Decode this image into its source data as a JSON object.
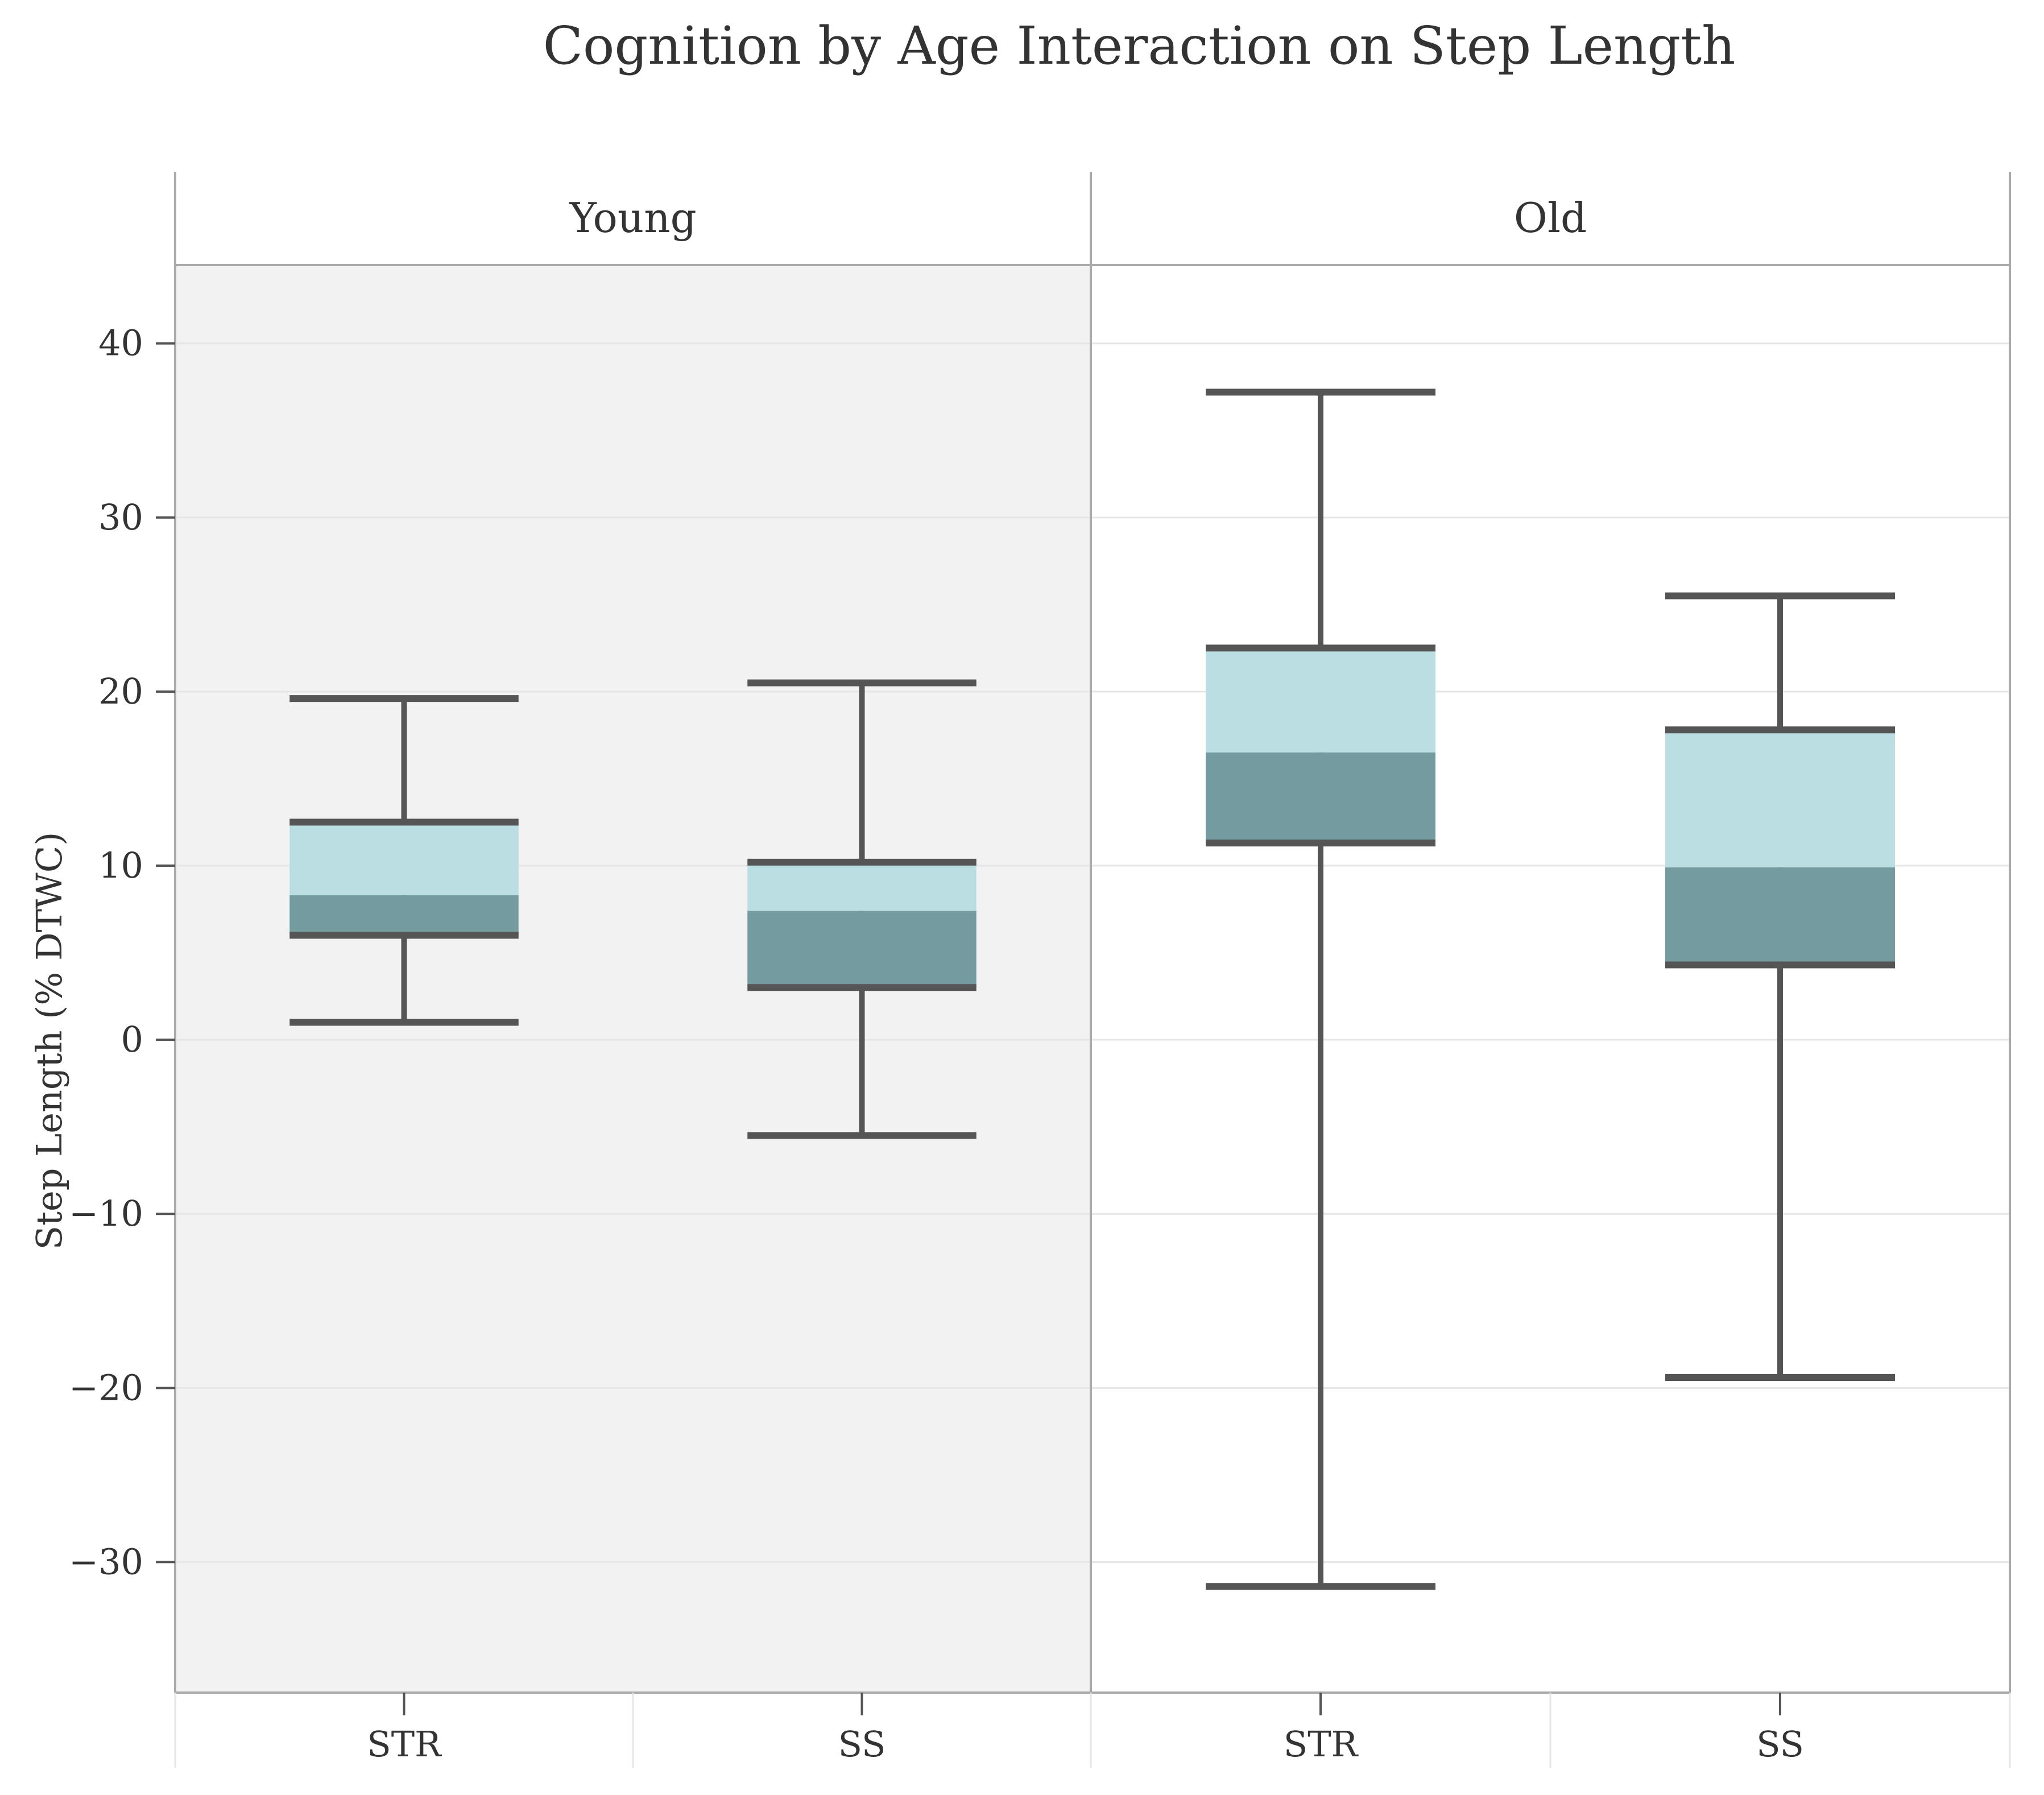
{
  "chart_data": {
    "type": "boxplot",
    "title": "Cognition by Age Interaction on Step Length",
    "ylabel": "Step Length (% DTWC)",
    "xlabel": "",
    "ylim": [
      -37.5,
      44.5
    ],
    "yticks": [
      40,
      30,
      20,
      10,
      0,
      -10,
      -20,
      -30
    ],
    "ytick_labels": [
      "40",
      "30",
      "20",
      "10",
      "0",
      "−10",
      "−20",
      "−30"
    ],
    "grid": true,
    "colors": {
      "upper_half": "#badee2",
      "lower_half": "#749ca0",
      "whisker": "#555555",
      "young_panel_bg": "#f2f2f2",
      "old_panel_bg": "#ffffff",
      "gridline": "#e6e6e6",
      "frame": "#aaaaaa"
    },
    "panels": [
      {
        "label": "Young",
        "categories": [
          "STR",
          "SS"
        ],
        "boxes": [
          {
            "category": "STR",
            "min": 1.0,
            "q1": 6.0,
            "median": 8.3,
            "q3": 12.5,
            "max": 19.6
          },
          {
            "category": "SS",
            "min": -5.5,
            "q1": 3.0,
            "median": 7.4,
            "q3": 10.2,
            "max": 20.5
          }
        ]
      },
      {
        "label": "Old",
        "categories": [
          "STR",
          "SS"
        ],
        "boxes": [
          {
            "category": "STR",
            "min": -31.4,
            "q1": 11.3,
            "median": 16.5,
            "q3": 22.5,
            "max": 37.2
          },
          {
            "category": "SS",
            "min": -19.4,
            "q1": 4.3,
            "median": 9.9,
            "q3": 17.8,
            "max": 25.5
          }
        ]
      }
    ]
  }
}
